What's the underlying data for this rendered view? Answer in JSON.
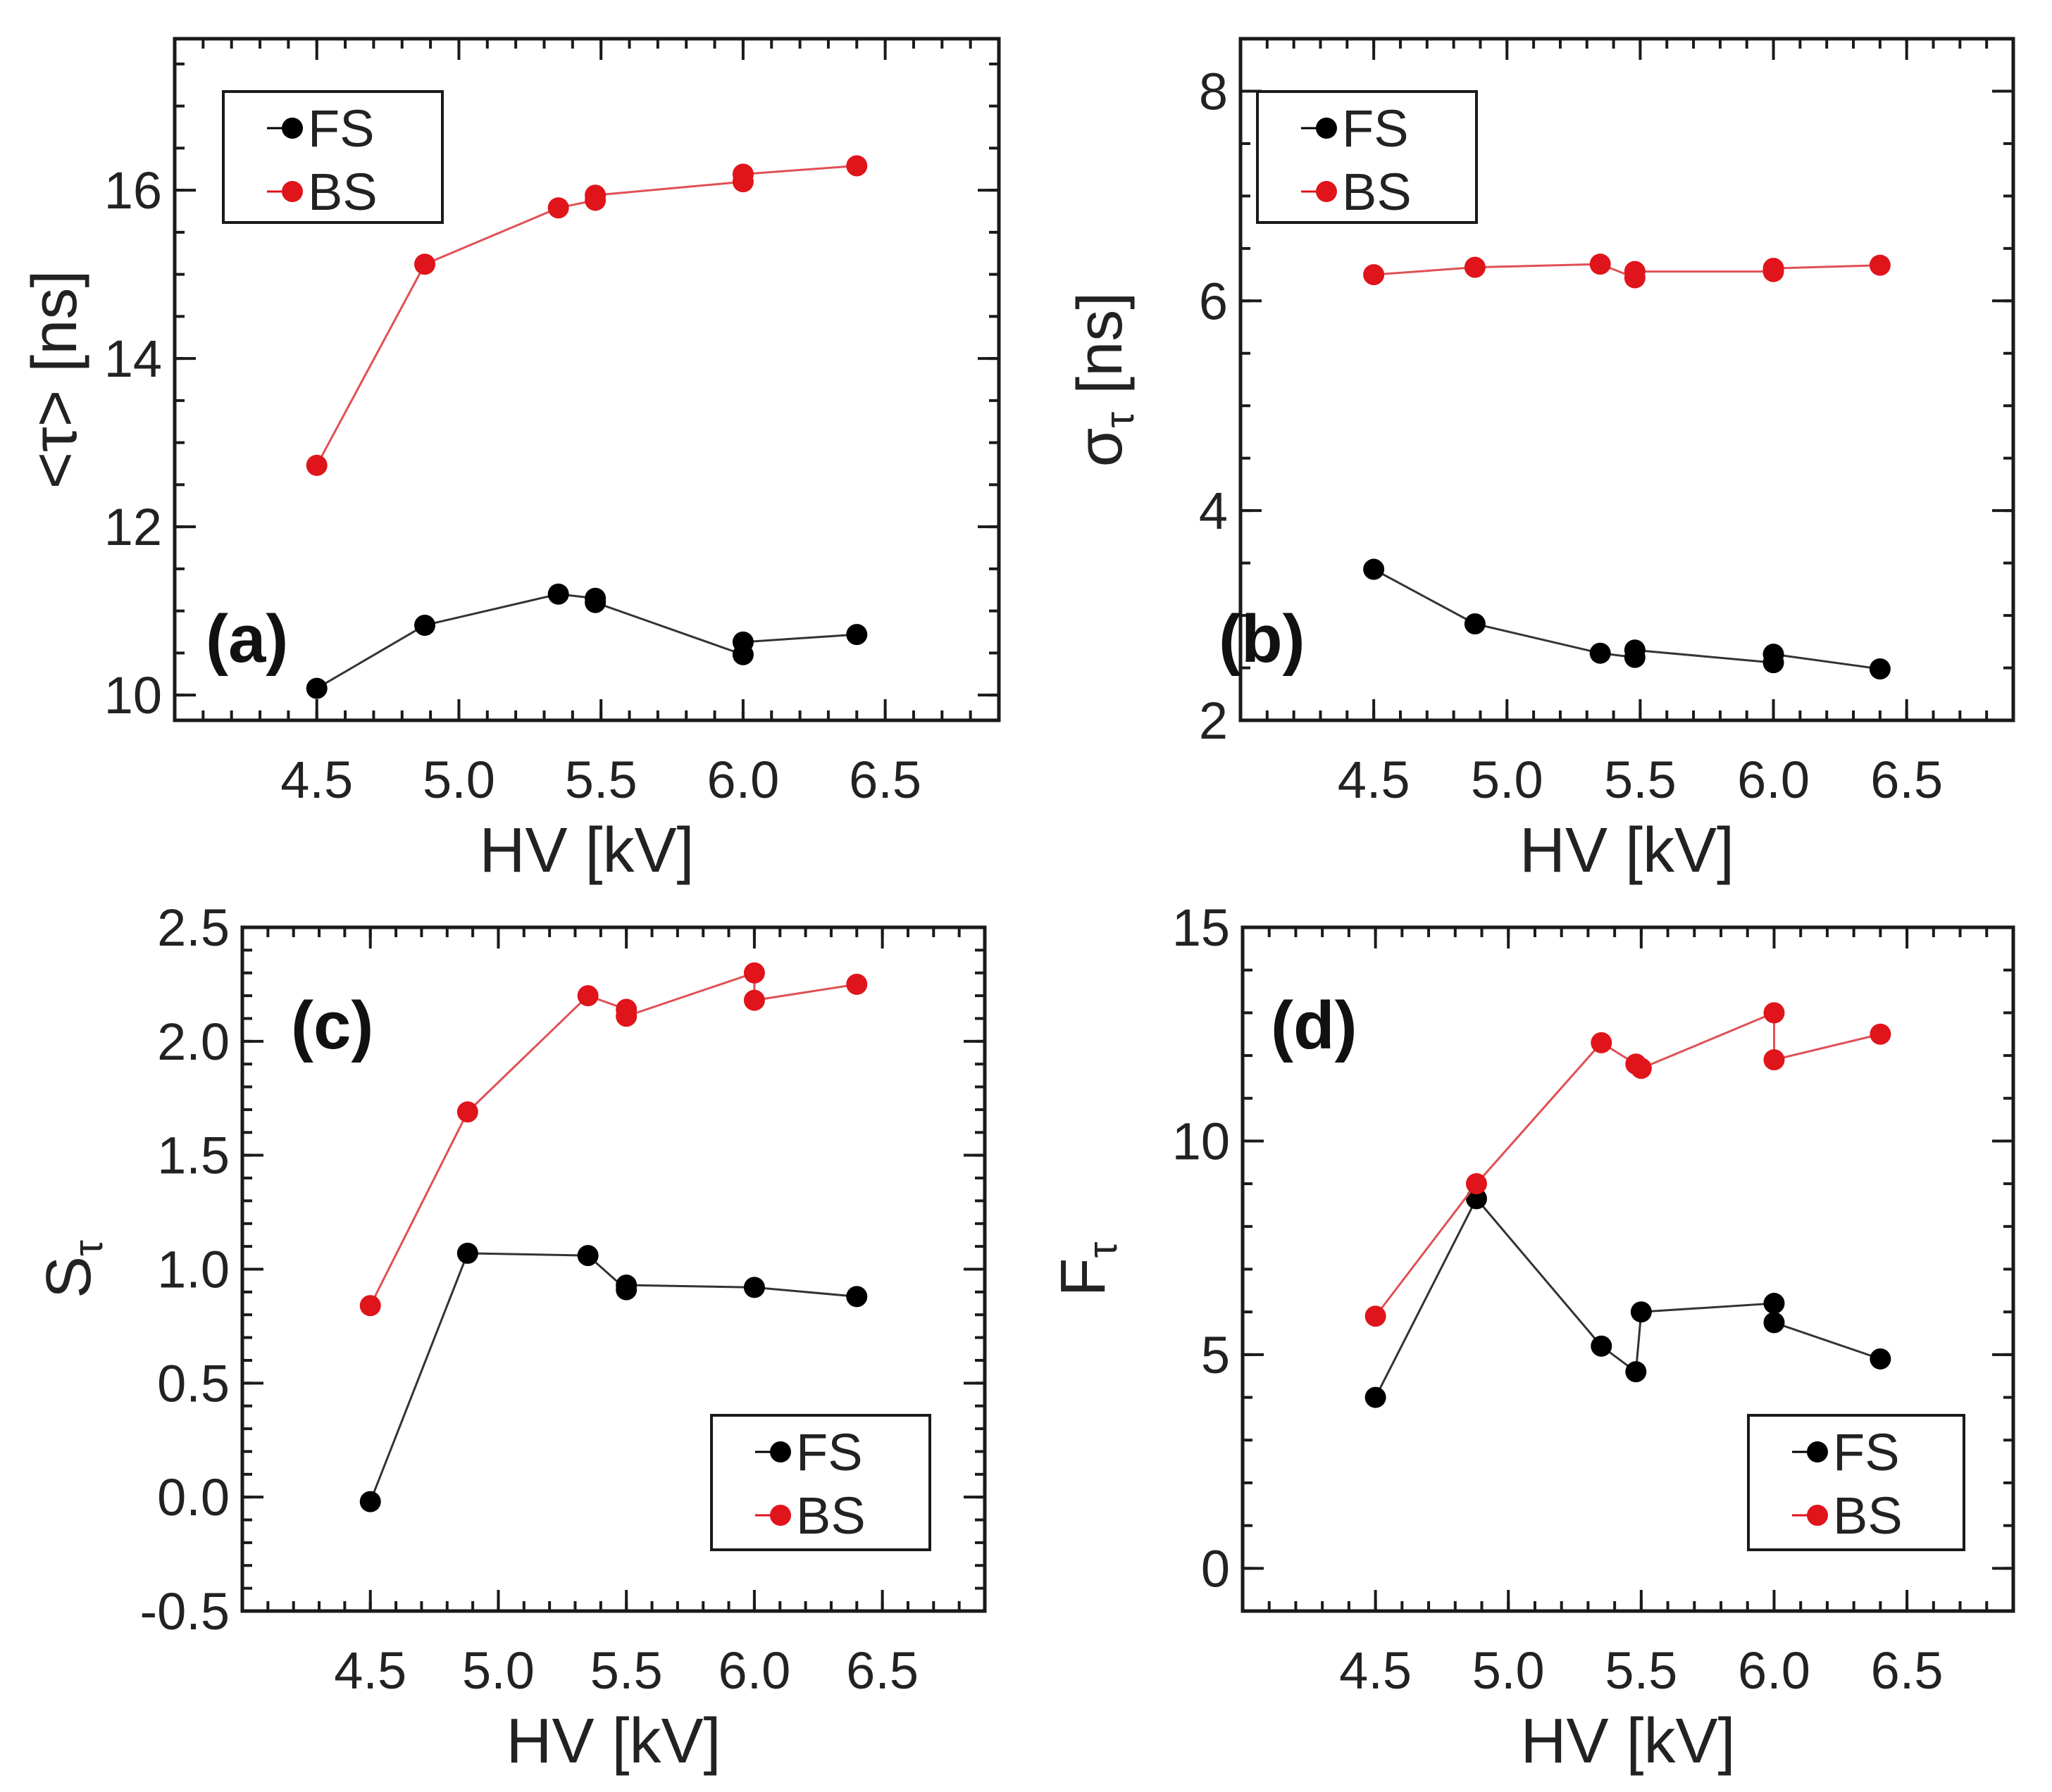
{
  "colors": {
    "FS": "#000000",
    "BS": "#e0141b",
    "BS_line": "#e05055",
    "FS_line": "#333333"
  },
  "chart_data": [
    {
      "id": "a",
      "type": "line",
      "panel_label": "(a)",
      "xlabel": "HV [kV]",
      "ylabel": "<τ> [ns]",
      "xlim": [
        4.0,
        6.9
      ],
      "ylim": [
        9.7,
        17.8
      ],
      "xticks": [
        4.5,
        5.0,
        5.5,
        6.0,
        6.5
      ],
      "xtick_labels": [
        "4.5",
        "5.0",
        "5.5",
        "6.0",
        "6.5"
      ],
      "xminor_step": 0.1,
      "yticks": [
        10,
        12,
        14,
        16
      ],
      "ytick_labels": [
        "10",
        "12",
        "14",
        "16"
      ],
      "yminor_step": 0.5,
      "legend_position": "top-left",
      "series": [
        {
          "name": "FS",
          "color_key": "FS",
          "x": [
            4.5,
            4.88,
            5.35,
            5.48,
            5.48,
            6.0,
            6.0,
            6.4
          ],
          "y": [
            10.08,
            10.83,
            11.2,
            11.15,
            11.1,
            10.48,
            10.63,
            10.72
          ]
        },
        {
          "name": "BS",
          "color_key": "BS",
          "x": [
            4.5,
            4.88,
            5.35,
            5.48,
            5.48,
            6.0,
            6.0,
            6.4
          ],
          "y": [
            12.73,
            15.12,
            15.79,
            15.88,
            15.94,
            16.1,
            16.19,
            16.29
          ]
        }
      ]
    },
    {
      "id": "b",
      "type": "line",
      "panel_label": "(b)",
      "xlabel": "HV [kV]",
      "ylabel": "σ",
      "ylabel_sub": "τ",
      "ylabel_suffix": " [ns]",
      "xlim": [
        4.0,
        6.9
      ],
      "ylim": [
        2.0,
        8.5
      ],
      "xticks": [
        4.5,
        5.0,
        5.5,
        6.0,
        6.5
      ],
      "xtick_labels": [
        "4.5",
        "5.0",
        "5.5",
        "6.0",
        "6.5"
      ],
      "xminor_step": 0.1,
      "yticks": [
        2,
        4,
        6,
        8
      ],
      "ytick_labels": [
        "2",
        "4",
        "6",
        "8"
      ],
      "yminor_step": 0.5,
      "legend_position": "top-left",
      "series": [
        {
          "name": "FS",
          "color_key": "FS",
          "x": [
            4.5,
            4.88,
            5.35,
            5.48,
            5.48,
            6.0,
            6.0,
            6.4
          ],
          "y": [
            3.44,
            2.92,
            2.64,
            2.6,
            2.67,
            2.55,
            2.63,
            2.49
          ]
        },
        {
          "name": "BS",
          "color_key": "BS",
          "x": [
            4.5,
            4.88,
            5.35,
            5.48,
            5.48,
            6.0,
            6.0,
            6.4
          ],
          "y": [
            6.25,
            6.32,
            6.35,
            6.22,
            6.28,
            6.28,
            6.31,
            6.34
          ]
        }
      ]
    },
    {
      "id": "c",
      "type": "line",
      "panel_label": "(c)",
      "xlabel": "HV [kV]",
      "ylabel": "S",
      "ylabel_sub": "τ",
      "ylabel_suffix": "",
      "xlim": [
        4.0,
        6.9
      ],
      "ylim": [
        -0.5,
        2.5
      ],
      "xticks": [
        4.5,
        5.0,
        5.5,
        6.0,
        6.5
      ],
      "xtick_labels": [
        "4.5",
        "5.0",
        "5.5",
        "6.0",
        "6.5"
      ],
      "xminor_step": 0.1,
      "yticks": [
        -0.5,
        0.0,
        0.5,
        1.0,
        1.5,
        2.0,
        2.5
      ],
      "ytick_labels": [
        "-0.5",
        "0.0",
        "0.5",
        "1.0",
        "1.5",
        "2.0",
        "2.5"
      ],
      "yminor_step": 0.1,
      "legend_position": "bottom-right",
      "series": [
        {
          "name": "FS",
          "color_key": "FS",
          "x": [
            4.5,
            4.88,
            5.35,
            5.5,
            5.5,
            6.0,
            6.4
          ],
          "y": [
            -0.02,
            1.07,
            1.06,
            0.91,
            0.93,
            0.92,
            0.88
          ]
        },
        {
          "name": "BS",
          "color_key": "BS",
          "x": [
            4.5,
            4.88,
            5.35,
            5.5,
            5.5,
            6.0,
            6.0,
            6.4
          ],
          "y": [
            0.84,
            1.69,
            2.2,
            2.14,
            2.11,
            2.3,
            2.18,
            2.25
          ]
        }
      ]
    },
    {
      "id": "d",
      "type": "line",
      "panel_label": "(d)",
      "xlabel": "HV [kV]",
      "ylabel": "F",
      "ylabel_sub": "τ",
      "ylabel_suffix": "",
      "xlim": [
        4.0,
        6.9
      ],
      "ylim": [
        -1.0,
        15.0
      ],
      "xticks": [
        4.5,
        5.0,
        5.5,
        6.0,
        6.5
      ],
      "xtick_labels": [
        "4.5",
        "5.0",
        "5.5",
        "6.0",
        "6.5"
      ],
      "xminor_step": 0.1,
      "yticks": [
        0,
        5,
        10,
        15
      ],
      "ytick_labels": [
        "0",
        "5",
        "10",
        "15"
      ],
      "yminor_step": 1,
      "legend_position": "bottom-right",
      "series": [
        {
          "name": "FS",
          "color_key": "FS",
          "x": [
            4.5,
            4.88,
            5.35,
            5.48,
            5.5,
            6.0,
            6.0,
            6.4
          ],
          "y": [
            4.0,
            8.65,
            5.2,
            4.6,
            6.0,
            6.2,
            5.75,
            4.9
          ]
        },
        {
          "name": "BS",
          "color_key": "BS",
          "x": [
            4.5,
            4.88,
            5.35,
            5.48,
            5.5,
            6.0,
            6.0,
            6.4
          ],
          "y": [
            5.9,
            9.0,
            12.3,
            11.8,
            11.7,
            13.0,
            11.9,
            12.5
          ]
        }
      ]
    }
  ]
}
